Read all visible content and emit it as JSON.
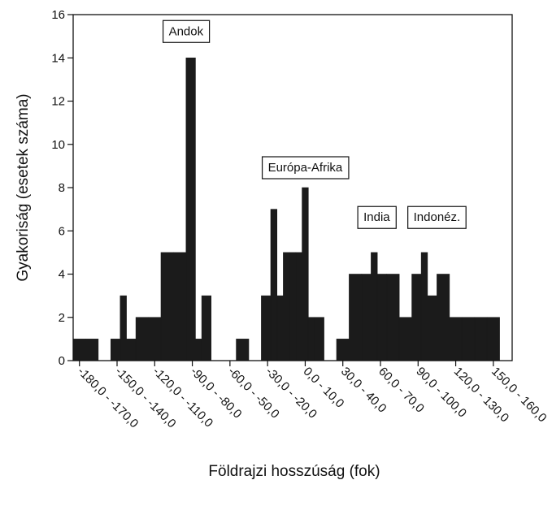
{
  "chart_data": {
    "type": "bar",
    "xlabel": "Földrajzi hosszúság (fok)",
    "ylabel": "Gyakoriság (esetek száma)",
    "ylim": [
      0,
      16
    ],
    "yticks": [
      0,
      2,
      4,
      6,
      8,
      10,
      12,
      14,
      16
    ],
    "grid": false,
    "bin_width": 10,
    "x_range": [
      -185,
      165
    ],
    "bins": [
      {
        "center": -180,
        "value": 1
      },
      {
        "center": -170,
        "value": 1
      },
      {
        "center": -160,
        "value": 0
      },
      {
        "center": -150,
        "value": 1
      },
      {
        "center": -145,
        "value": 3
      },
      {
        "center": -140,
        "value": 1
      },
      {
        "center": -130,
        "value": 2
      },
      {
        "center": -120,
        "value": 2
      },
      {
        "center": -110,
        "value": 5
      },
      {
        "center": -100,
        "value": 5
      },
      {
        "center": -90,
        "value": 14
      },
      {
        "center": -85,
        "value": 1
      },
      {
        "center": -80,
        "value": 3
      },
      {
        "center": -70,
        "value": 0
      },
      {
        "center": -60,
        "value": 0
      },
      {
        "center": -50,
        "value": 1
      },
      {
        "center": -40,
        "value": 0
      },
      {
        "center": -30,
        "value": 3
      },
      {
        "center": -25,
        "value": 7
      },
      {
        "center": -20,
        "value": 3
      },
      {
        "center": -15,
        "value": 5
      },
      {
        "center": -10,
        "value": 5
      },
      {
        "center": -5,
        "value": 5
      },
      {
        "center": 0,
        "value": 8
      },
      {
        "center": 5,
        "value": 2
      },
      {
        "center": 10,
        "value": 2
      },
      {
        "center": 20,
        "value": 0
      },
      {
        "center": 30,
        "value": 1
      },
      {
        "center": 40,
        "value": 4
      },
      {
        "center": 50,
        "value": 4
      },
      {
        "center": 55,
        "value": 5
      },
      {
        "center": 60,
        "value": 4
      },
      {
        "center": 70,
        "value": 4
      },
      {
        "center": 80,
        "value": 2
      },
      {
        "center": 90,
        "value": 4
      },
      {
        "center": 95,
        "value": 5
      },
      {
        "center": 100,
        "value": 3
      },
      {
        "center": 110,
        "value": 4
      },
      {
        "center": 120,
        "value": 2
      },
      {
        "center": 130,
        "value": 2
      },
      {
        "center": 140,
        "value": 2
      },
      {
        "center": 150,
        "value": 2
      }
    ],
    "xtick_labels": [
      {
        "x": -180,
        "label": "-180,0 - -170,0"
      },
      {
        "x": -150,
        "label": "-150,0 - -140,0"
      },
      {
        "x": -120,
        "label": "-120,0 - -110,0"
      },
      {
        "x": -90,
        "label": "-90,0 - -80,0"
      },
      {
        "x": -60,
        "label": "-60,0 - -50,0"
      },
      {
        "x": -30,
        "label": "-30,0 - -20,0"
      },
      {
        "x": 0,
        "label": "0,0 - 10,0"
      },
      {
        "x": 30,
        "label": "30,0 - 40,0"
      },
      {
        "x": 60,
        "label": "60,0 - 70,0"
      },
      {
        "x": 90,
        "label": "90,0 - 100,0"
      },
      {
        "x": 120,
        "label": "120,0 - 130,0"
      },
      {
        "x": 150,
        "label": "150,0 - 160,0"
      }
    ],
    "annotations": [
      {
        "text": "Andok",
        "x": -95,
        "y": 15.2
      },
      {
        "text": "Európa-Afrika",
        "x": 0,
        "y": 8.9
      },
      {
        "text": "India",
        "x": 57,
        "y": 6.6
      },
      {
        "text": "Indonéz.",
        "x": 105,
        "y": 6.6
      }
    ]
  }
}
